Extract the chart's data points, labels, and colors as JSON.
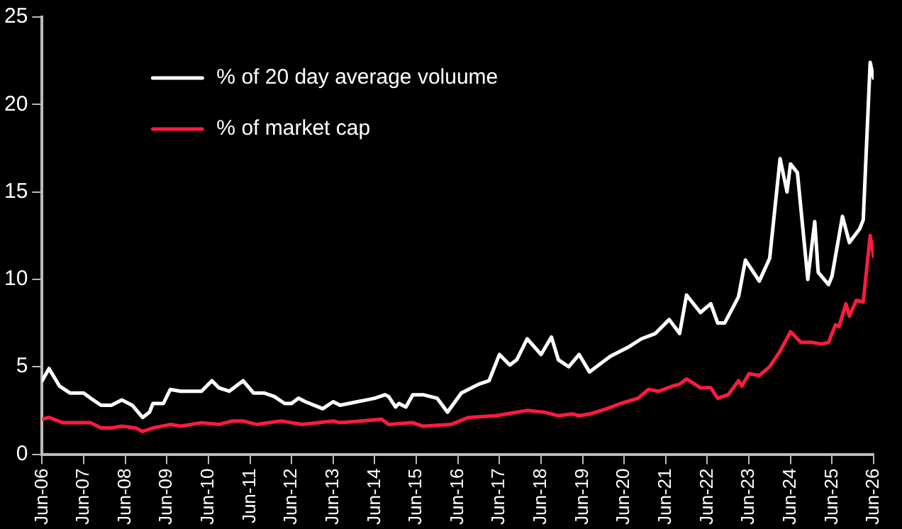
{
  "chart_data": {
    "type": "line",
    "legend": "top left",
    "grid": false,
    "marker": "none",
    "line_style": "solid",
    "ylim": [
      0,
      25
    ],
    "yticks": [
      0,
      5,
      10,
      15,
      20,
      25
    ],
    "xlim": [
      "2006-06",
      "2026-06"
    ],
    "xticks": [
      {
        "value": "2006-06",
        "label": "Jun-06"
      },
      {
        "value": "2007-06",
        "label": "Jun-07"
      },
      {
        "value": "2008-06",
        "label": "Jun-08"
      },
      {
        "value": "2009-06",
        "label": "Jun-09"
      },
      {
        "value": "2010-06",
        "label": "Jun-10"
      },
      {
        "value": "2011-06",
        "label": "Jun-11"
      },
      {
        "value": "2012-06",
        "label": "Jun-12"
      },
      {
        "value": "2013-06",
        "label": "Jun-13"
      },
      {
        "value": "2014-06",
        "label": "Jun-14"
      },
      {
        "value": "2015-06",
        "label": "Jun-15"
      },
      {
        "value": "2016-06",
        "label": "Jun-16"
      },
      {
        "value": "2017-06",
        "label": "Jun-17"
      },
      {
        "value": "2018-06",
        "label": "Jun-18"
      },
      {
        "value": "2019-06",
        "label": "Jun-19"
      },
      {
        "value": "2020-06",
        "label": "Jun-20"
      },
      {
        "value": "2021-06",
        "label": "Jun-21"
      },
      {
        "value": "2022-06",
        "label": "Jun-22"
      },
      {
        "value": "2023-06",
        "label": "Jun-23"
      },
      {
        "value": "2024-06",
        "label": "Jun-24"
      },
      {
        "value": "2025-06",
        "label": "Jun-25"
      },
      {
        "value": "2026-06",
        "label": "Jun-26"
      }
    ],
    "series": [
      {
        "name": "% of 20 day average voluume",
        "color": "#ffffff",
        "x": [
          "2006-06",
          "2006-08",
          "2006-11",
          "2007-02",
          "2007-06",
          "2007-08",
          "2007-11",
          "2008-02",
          "2008-05",
          "2008-08",
          "2008-11",
          "2009-01",
          "2009-02",
          "2009-05",
          "2009-07",
          "2009-10",
          "2010-01",
          "2010-04",
          "2010-07",
          "2010-09",
          "2010-12",
          "2011-04",
          "2011-07",
          "2011-10",
          "2012-01",
          "2012-04",
          "2012-06",
          "2012-08",
          "2012-10",
          "2013-03",
          "2013-06",
          "2013-08",
          "2014-01",
          "2014-06",
          "2014-09",
          "2014-10",
          "2014-12",
          "2015-01",
          "2015-03",
          "2015-05",
          "2015-08",
          "2015-12",
          "2016-03",
          "2016-07",
          "2016-09",
          "2016-12",
          "2017-03",
          "2017-06",
          "2017-09",
          "2017-11",
          "2018-02",
          "2018-06",
          "2018-09",
          "2018-11",
          "2019-02",
          "2019-05",
          "2019-08",
          "2020-02",
          "2020-07",
          "2020-11",
          "2021-03",
          "2021-07",
          "2021-10",
          "2021-12",
          "2022-04",
          "2022-07",
          "2022-09",
          "2022-11",
          "2023-03",
          "2023-05",
          "2023-09",
          "2023-12",
          "2024-03",
          "2024-05",
          "2024-06",
          "2024-08",
          "2024-11",
          "2025-01",
          "2025-02",
          "2025-05",
          "2025-06",
          "2025-09",
          "2025-11",
          "2026-02",
          "2026-03",
          "2026-05",
          "2026-06"
        ],
        "values": [
          4.2,
          4.9,
          3.9,
          3.5,
          3.5,
          3.2,
          2.8,
          2.8,
          3.1,
          2.8,
          2.1,
          2.4,
          2.9,
          2.9,
          3.7,
          3.6,
          3.6,
          3.6,
          4.2,
          3.8,
          3.6,
          4.2,
          3.5,
          3.5,
          3.3,
          2.9,
          2.9,
          3.2,
          3.0,
          2.6,
          3.0,
          2.8,
          3.0,
          3.2,
          3.4,
          3.3,
          2.7,
          2.9,
          2.7,
          3.4,
          3.4,
          3.2,
          2.4,
          3.5,
          3.7,
          4.0,
          4.2,
          5.7,
          5.1,
          5.4,
          6.6,
          5.7,
          6.7,
          5.4,
          5.0,
          5.7,
          4.7,
          5.6,
          6.1,
          6.6,
          6.9,
          7.7,
          6.9,
          9.1,
          8.1,
          8.6,
          7.5,
          7.5,
          9.0,
          11.1,
          9.9,
          11.2,
          16.9,
          15.0,
          16.6,
          16.1,
          10.0,
          13.3,
          10.4,
          9.7,
          10.2,
          13.6,
          12.1,
          12.9,
          13.4,
          22.4,
          21.5
        ]
      },
      {
        "name": "% of market cap",
        "color": "#ff1a40",
        "x": [
          "2006-06",
          "2006-08",
          "2006-12",
          "2007-08",
          "2007-11",
          "2008-02",
          "2008-05",
          "2008-09",
          "2008-11",
          "2009-02",
          "2009-07",
          "2009-10",
          "2010-04",
          "2010-09",
          "2011-01",
          "2011-04",
          "2011-08",
          "2012-03",
          "2012-09",
          "2013-06",
          "2013-08",
          "2014-02",
          "2014-08",
          "2014-10",
          "2015-05",
          "2015-08",
          "2016-04",
          "2016-09",
          "2017-05",
          "2018-02",
          "2018-07",
          "2018-11",
          "2019-03",
          "2019-05",
          "2019-08",
          "2020-01",
          "2020-05",
          "2020-10",
          "2021-01",
          "2021-04",
          "2021-08",
          "2021-10",
          "2021-12",
          "2022-04",
          "2022-07",
          "2022-09",
          "2022-12",
          "2023-03",
          "2023-04",
          "2023-06",
          "2023-09",
          "2023-12",
          "2024-03",
          "2024-06",
          "2024-09",
          "2024-12",
          "2025-03",
          "2025-05",
          "2025-07",
          "2025-08",
          "2025-10",
          "2025-11",
          "2026-01",
          "2026-03",
          "2026-05",
          "2026-06"
        ],
        "values": [
          2.0,
          2.1,
          1.8,
          1.8,
          1.5,
          1.5,
          1.6,
          1.5,
          1.3,
          1.5,
          1.7,
          1.6,
          1.8,
          1.7,
          1.9,
          1.9,
          1.7,
          1.9,
          1.7,
          1.9,
          1.8,
          1.9,
          2.0,
          1.7,
          1.8,
          1.6,
          1.7,
          2.1,
          2.2,
          2.5,
          2.4,
          2.2,
          2.3,
          2.2,
          2.3,
          2.6,
          2.9,
          3.2,
          3.7,
          3.6,
          3.9,
          4.0,
          4.3,
          3.8,
          3.8,
          3.2,
          3.4,
          4.2,
          3.9,
          4.6,
          4.5,
          5.0,
          5.9,
          7.0,
          6.4,
          6.4,
          6.3,
          6.4,
          7.4,
          7.3,
          8.6,
          7.9,
          8.8,
          8.7,
          12.5,
          11.3
        ]
      }
    ]
  }
}
